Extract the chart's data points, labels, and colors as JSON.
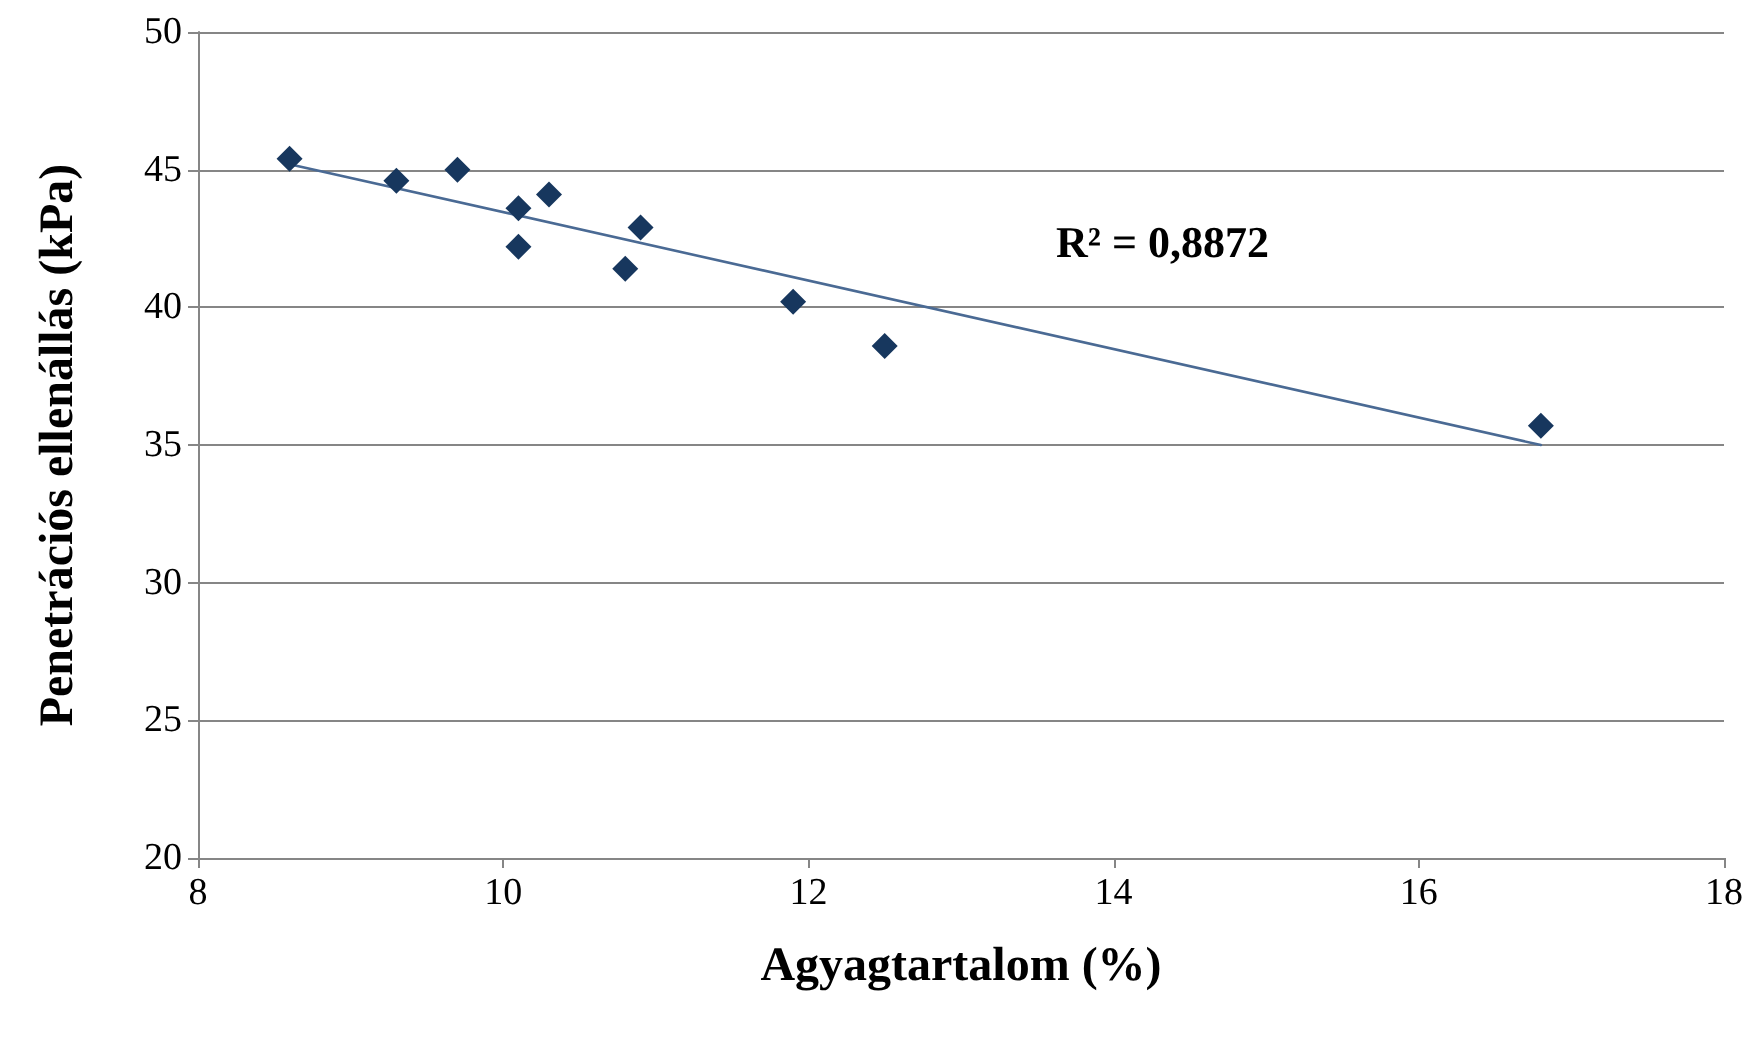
{
  "chart_data": {
    "type": "scatter",
    "xlabel": "Agyagtartalom (%)",
    "ylabel": "Penetrációs ellenállás (kPa)",
    "annotations": [
      "R² = 0,8872"
    ],
    "xlim": [
      8,
      18
    ],
    "xticks": [
      8,
      10,
      12,
      14,
      16,
      18
    ],
    "ylim": [
      20,
      50
    ],
    "yticks": [
      20,
      25,
      30,
      35,
      40,
      45,
      50
    ],
    "grid": "y",
    "marker": "diamond",
    "series": [
      {
        "color": "#17375e",
        "x": [
          8.6,
          9.3,
          9.7,
          10.1,
          10.3,
          10.1,
          10.9,
          10.8,
          11.9,
          12.5,
          16.8
        ],
        "values": [
          45.4,
          44.6,
          45.0,
          43.6,
          44.1,
          42.2,
          42.9,
          41.4,
          40.2,
          38.6,
          35.7
        ]
      },
      {
        "type": "line",
        "color": "#4a6a94",
        "x": [
          8.6,
          16.8
        ],
        "values": [
          45.2,
          35.0
        ],
        "marker": "none",
        "line_style": "solid"
      }
    ]
  }
}
